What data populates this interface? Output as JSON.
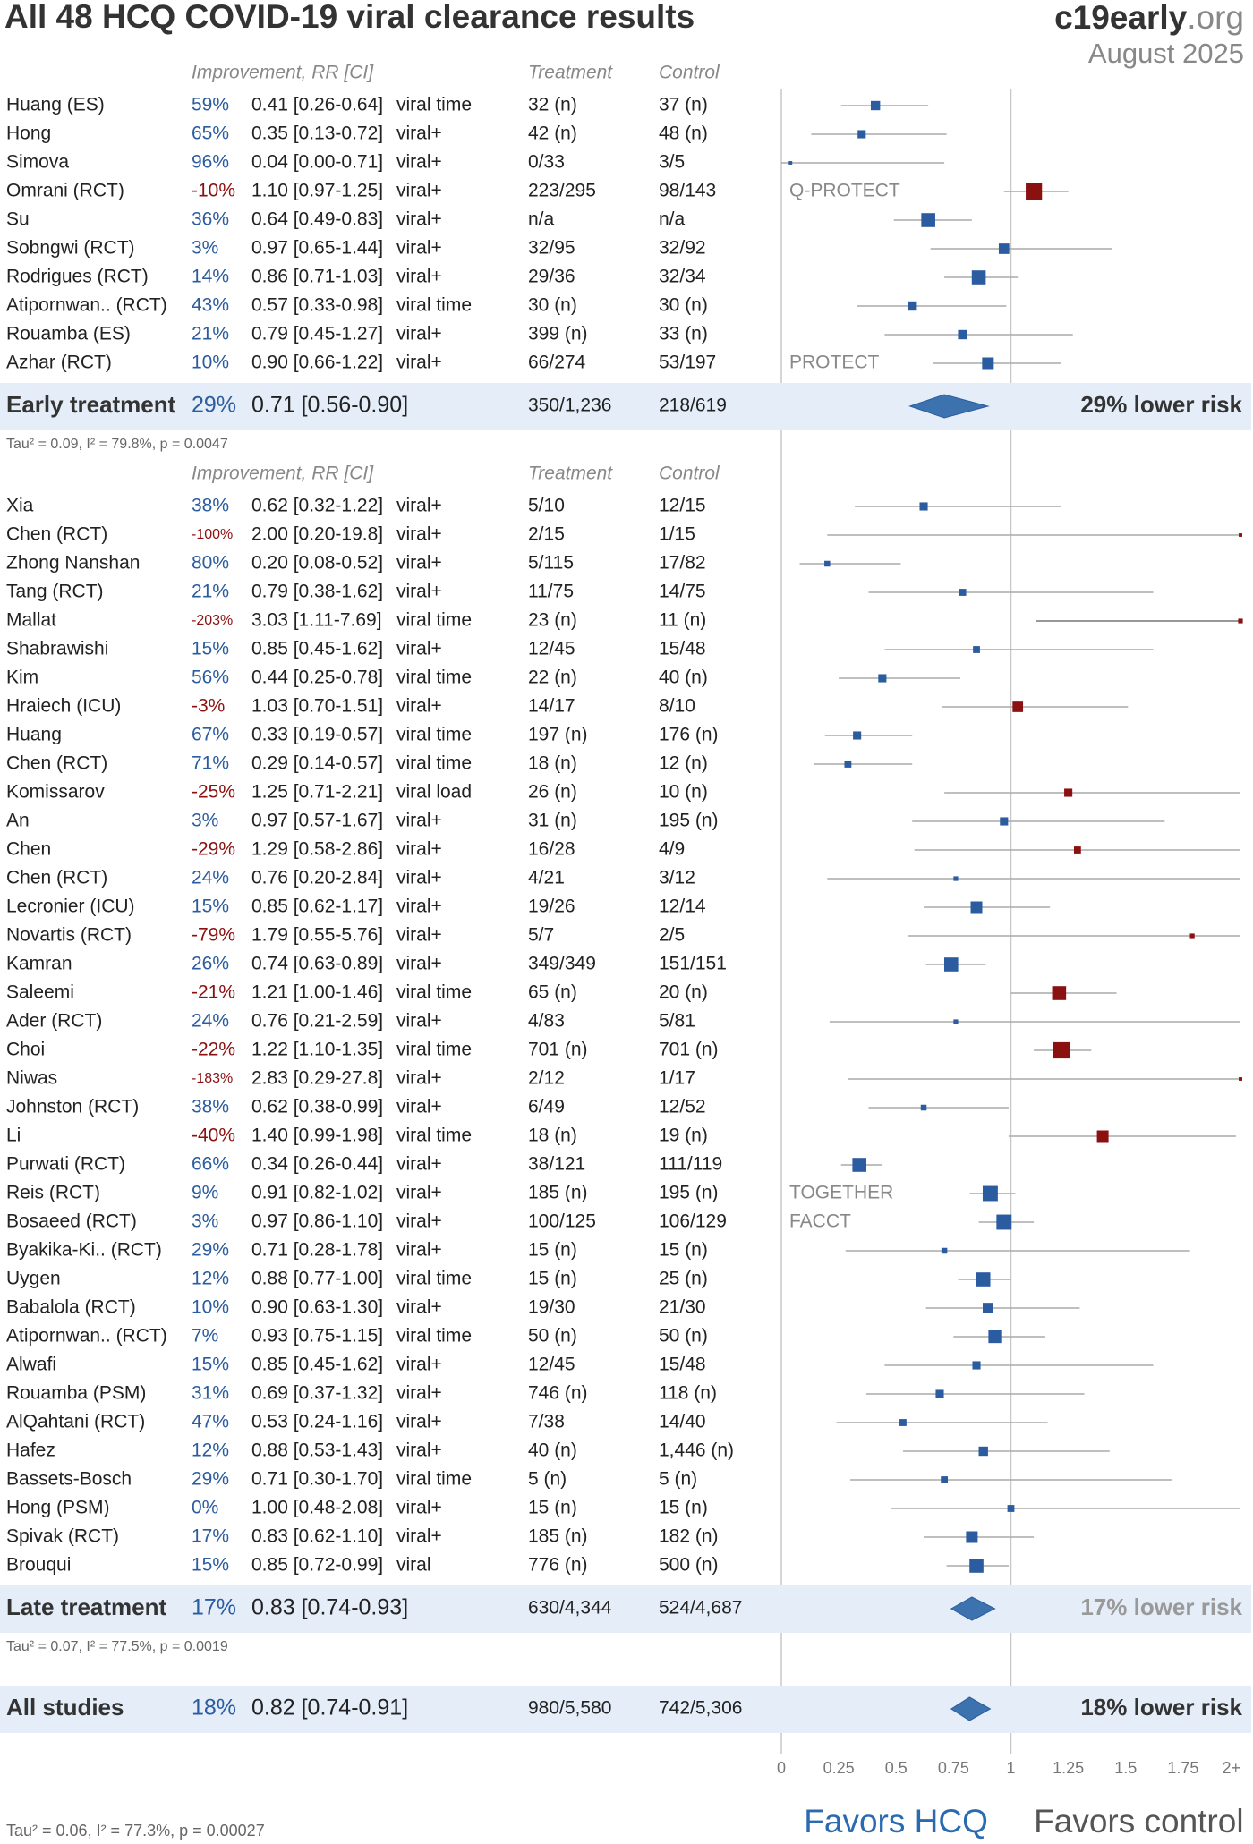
{
  "chart_data": {
    "type": "forest",
    "title": "All 48 HCQ COVID-19 viral clearance results",
    "brand": "c19early",
    "brand_suffix": ".org",
    "date": "August 2025",
    "headers": {
      "improvement": "Improvement, RR [CI]",
      "treatment": "Treatment",
      "control": "Control"
    },
    "xlim": [
      0,
      2
    ],
    "xticks": [
      0,
      0.25,
      0.5,
      0.75,
      1,
      1.25,
      1.5,
      1.75,
      {
        "value": 2,
        "label": "2+"
      }
    ],
    "colors": {
      "benefit": "#2a5c9f",
      "harm": "#8b1010",
      "band": "#e4edf8",
      "whisker": "#aaaaaa"
    },
    "groups": [
      {
        "studies": [
          {
            "name": "Huang (ES)",
            "improvement": "59%",
            "rr": 0.41,
            "ci": [
              0.26,
              0.64
            ],
            "rr_label": "0.41 [0.26-0.64]",
            "outcome": "viral time",
            "treatment": "32 (n)",
            "control": "37 (n)",
            "weight": 8
          },
          {
            "name": "Hong",
            "improvement": "65%",
            "rr": 0.35,
            "ci": [
              0.13,
              0.72
            ],
            "rr_label": "0.35 [0.13-0.72]",
            "outcome": "viral+",
            "treatment": "42 (n)",
            "control": "48 (n)",
            "weight": 7
          },
          {
            "name": "Simova",
            "improvement": "96%",
            "rr": 0.04,
            "ci": [
              0.0,
              0.71
            ],
            "rr_label": "0.04 [0.00-0.71]",
            "outcome": "viral+",
            "treatment": "0/33",
            "control": "3/5",
            "weight": 3
          },
          {
            "name": "Omrani (RCT)",
            "improvement": "-10%",
            "rr": 1.1,
            "ci": [
              0.97,
              1.25
            ],
            "rr_label": "1.10 [0.97-1.25]",
            "outcome": "viral+",
            "treatment": "223/295",
            "control": "98/143",
            "weight": 14,
            "note": "Q-PROTECT"
          },
          {
            "name": "Su",
            "improvement": "36%",
            "rr": 0.64,
            "ci": [
              0.49,
              0.83
            ],
            "rr_label": "0.64 [0.49-0.83]",
            "outcome": "viral+",
            "treatment": "n/a",
            "control": "n/a",
            "weight": 12
          },
          {
            "name": "Sobngwi (RCT)",
            "improvement": "3%",
            "rr": 0.97,
            "ci": [
              0.65,
              1.44
            ],
            "rr_label": "0.97 [0.65-1.44]",
            "outcome": "viral+",
            "treatment": "32/95",
            "control": "32/92",
            "weight": 9
          },
          {
            "name": "Rodrigues (RCT)",
            "improvement": "14%",
            "rr": 0.86,
            "ci": [
              0.71,
              1.03
            ],
            "rr_label": "0.86 [0.71-1.03]",
            "outcome": "viral+",
            "treatment": "29/36",
            "control": "32/34",
            "weight": 12
          },
          {
            "name": "Atipornwan.. (RCT)",
            "improvement": "43%",
            "rr": 0.57,
            "ci": [
              0.33,
              0.98
            ],
            "rr_label": "0.57 [0.33-0.98]",
            "outcome": "viral time",
            "treatment": "30 (n)",
            "control": "30 (n)",
            "weight": 8
          },
          {
            "name": "Rouamba (ES)",
            "improvement": "21%",
            "rr": 0.79,
            "ci": [
              0.45,
              1.27
            ],
            "rr_label": "0.79 [0.45-1.27]",
            "outcome": "viral+",
            "treatment": "399 (n)",
            "control": "33 (n)",
            "weight": 8
          },
          {
            "name": "Azhar (RCT)",
            "improvement": "10%",
            "rr": 0.9,
            "ci": [
              0.66,
              1.22
            ],
            "rr_label": "0.90 [0.66-1.22]",
            "outcome": "viral+",
            "treatment": "66/274",
            "control": "53/197",
            "weight": 10,
            "note": "PROTECT"
          }
        ],
        "summary": {
          "label": "Early treatment",
          "improvement": "29%",
          "rr": 0.71,
          "ci": [
            0.56,
            0.9
          ],
          "rr_label": "0.71 [0.56-0.90]",
          "treatment": "350/1,236",
          "control": "218/619",
          "risk_label": "29% lower risk",
          "stats": "Tau² = 0.09, I² = 79.8%, p = 0.0047"
        }
      },
      {
        "studies": [
          {
            "name": "Xia",
            "improvement": "38%",
            "rr": 0.62,
            "ci": [
              0.32,
              1.22
            ],
            "rr_label": "0.62 [0.32-1.22]",
            "outcome": "viral+",
            "treatment": "5/10",
            "control": "12/15",
            "weight": 7
          },
          {
            "name": "Chen (RCT)",
            "improvement": "-100%",
            "rr": 2.0,
            "ci": [
              0.2,
              19.8
            ],
            "rr_label": "2.00 [0.20-19.8]",
            "outcome": "viral+",
            "treatment": "2/15",
            "control": "1/15",
            "weight": 3
          },
          {
            "name": "Zhong Nanshan",
            "improvement": "80%",
            "rr": 0.2,
            "ci": [
              0.08,
              0.52
            ],
            "rr_label": "0.20 [0.08-0.52]",
            "outcome": "viral+",
            "treatment": "5/115",
            "control": "17/82",
            "weight": 5
          },
          {
            "name": "Tang (RCT)",
            "improvement": "21%",
            "rr": 0.79,
            "ci": [
              0.38,
              1.62
            ],
            "rr_label": "0.79 [0.38-1.62]",
            "outcome": "viral+",
            "treatment": "11/75",
            "control": "14/75",
            "weight": 6
          },
          {
            "name": "Mallat",
            "improvement": "-203%",
            "rr": 3.03,
            "ci": [
              1.11,
              7.69
            ],
            "rr_label": "3.03 [1.11-7.69]",
            "outcome": "viral time",
            "treatment": "23 (n)",
            "control": "11 (n)",
            "weight": 4
          },
          {
            "name": "Shabrawishi",
            "improvement": "15%",
            "rr": 0.85,
            "ci": [
              0.45,
              1.62
            ],
            "rr_label": "0.85 [0.45-1.62]",
            "outcome": "viral+",
            "treatment": "12/45",
            "control": "15/48",
            "weight": 6
          },
          {
            "name": "Kim",
            "improvement": "56%",
            "rr": 0.44,
            "ci": [
              0.25,
              0.78
            ],
            "rr_label": "0.44 [0.25-0.78]",
            "outcome": "viral time",
            "treatment": "22 (n)",
            "control": "40 (n)",
            "weight": 7
          },
          {
            "name": "Hraiech (ICU)",
            "improvement": "-3%",
            "rr": 1.03,
            "ci": [
              0.7,
              1.51
            ],
            "rr_label": "1.03 [0.70-1.51]",
            "outcome": "viral+",
            "treatment": "14/17",
            "control": "8/10",
            "weight": 9
          },
          {
            "name": "Huang",
            "improvement": "67%",
            "rr": 0.33,
            "ci": [
              0.19,
              0.57
            ],
            "rr_label": "0.33 [0.19-0.57]",
            "outcome": "viral time",
            "treatment": "197 (n)",
            "control": "176 (n)",
            "weight": 7
          },
          {
            "name": "Chen (RCT)",
            "improvement": "71%",
            "rr": 0.29,
            "ci": [
              0.14,
              0.57
            ],
            "rr_label": "0.29 [0.14-0.57]",
            "outcome": "viral time",
            "treatment": "18 (n)",
            "control": "12 (n)",
            "weight": 6
          },
          {
            "name": "Komissarov",
            "improvement": "-25%",
            "rr": 1.25,
            "ci": [
              0.71,
              2.21
            ],
            "rr_label": "1.25 [0.71-2.21]",
            "outcome": "viral load",
            "treatment": "26 (n)",
            "control": "10 (n)",
            "weight": 7
          },
          {
            "name": "An",
            "improvement": "3%",
            "rr": 0.97,
            "ci": [
              0.57,
              1.67
            ],
            "rr_label": "0.97 [0.57-1.67]",
            "outcome": "viral+",
            "treatment": "31 (n)",
            "control": "195 (n)",
            "weight": 7
          },
          {
            "name": "Chen",
            "improvement": "-29%",
            "rr": 1.29,
            "ci": [
              0.58,
              2.86
            ],
            "rr_label": "1.29 [0.58-2.86]",
            "outcome": "viral+",
            "treatment": "16/28",
            "control": "4/9",
            "weight": 6
          },
          {
            "name": "Chen (RCT)",
            "improvement": "24%",
            "rr": 0.76,
            "ci": [
              0.2,
              2.84
            ],
            "rr_label": "0.76 [0.20-2.84]",
            "outcome": "viral+",
            "treatment": "4/21",
            "control": "3/12",
            "weight": 4
          },
          {
            "name": "Lecronier (ICU)",
            "improvement": "15%",
            "rr": 0.85,
            "ci": [
              0.62,
              1.17
            ],
            "rr_label": "0.85 [0.62-1.17]",
            "outcome": "viral+",
            "treatment": "19/26",
            "control": "12/14",
            "weight": 10
          },
          {
            "name": "Novartis (RCT)",
            "improvement": "-79%",
            "rr": 1.79,
            "ci": [
              0.55,
              5.76
            ],
            "rr_label": "1.79 [0.55-5.76]",
            "outcome": "viral+",
            "treatment": "5/7",
            "control": "2/5",
            "weight": 4
          },
          {
            "name": "Kamran",
            "improvement": "26%",
            "rr": 0.74,
            "ci": [
              0.63,
              0.89
            ],
            "rr_label": "0.74 [0.63-0.89]",
            "outcome": "viral+",
            "treatment": "349/349",
            "control": "151/151",
            "weight": 12
          },
          {
            "name": "Saleemi",
            "improvement": "-21%",
            "rr": 1.21,
            "ci": [
              1.0,
              1.46
            ],
            "rr_label": "1.21 [1.00-1.46]",
            "outcome": "viral time",
            "treatment": "65 (n)",
            "control": "20 (n)",
            "weight": 12
          },
          {
            "name": "Ader (RCT)",
            "improvement": "24%",
            "rr": 0.76,
            "ci": [
              0.21,
              2.59
            ],
            "rr_label": "0.76 [0.21-2.59]",
            "outcome": "viral+",
            "treatment": "4/83",
            "control": "5/81",
            "weight": 4
          },
          {
            "name": "Choi",
            "improvement": "-22%",
            "rr": 1.22,
            "ci": [
              1.1,
              1.35
            ],
            "rr_label": "1.22 [1.10-1.35]",
            "outcome": "viral time",
            "treatment": "701 (n)",
            "control": "701 (n)",
            "weight": 14
          },
          {
            "name": "Niwas",
            "improvement": "-183%",
            "rr": 2.83,
            "ci": [
              0.29,
              27.8
            ],
            "rr_label": "2.83 [0.29-27.8]",
            "outcome": "viral+",
            "treatment": "2/12",
            "control": "1/17",
            "weight": 3
          },
          {
            "name": "Johnston (RCT)",
            "improvement": "38%",
            "rr": 0.62,
            "ci": [
              0.38,
              0.99
            ],
            "rr_label": "0.62 [0.38-0.99]",
            "outcome": "viral+",
            "treatment": "6/49",
            "control": "12/52",
            "weight": 5
          },
          {
            "name": "Li",
            "improvement": "-40%",
            "rr": 1.4,
            "ci": [
              0.99,
              1.98
            ],
            "rr_label": "1.40 [0.99-1.98]",
            "outcome": "viral time",
            "treatment": "18 (n)",
            "control": "19 (n)",
            "weight": 10
          },
          {
            "name": "Purwati (RCT)",
            "improvement": "66%",
            "rr": 0.34,
            "ci": [
              0.26,
              0.44
            ],
            "rr_label": "0.34 [0.26-0.44]",
            "outcome": "viral+",
            "treatment": "38/121",
            "control": "111/119",
            "weight": 12
          },
          {
            "name": "Reis (RCT)",
            "improvement": "9%",
            "rr": 0.91,
            "ci": [
              0.82,
              1.02
            ],
            "rr_label": "0.91 [0.82-1.02]",
            "outcome": "viral+",
            "treatment": "185 (n)",
            "control": "195 (n)",
            "weight": 13,
            "note": "TOGETHER"
          },
          {
            "name": "Bosaeed (RCT)",
            "improvement": "3%",
            "rr": 0.97,
            "ci": [
              0.86,
              1.1
            ],
            "rr_label": "0.97 [0.86-1.10]",
            "outcome": "viral+",
            "treatment": "100/125",
            "control": "106/129",
            "weight": 13,
            "note": "FACCT"
          },
          {
            "name": "Byakika-Ki.. (RCT)",
            "improvement": "29%",
            "rr": 0.71,
            "ci": [
              0.28,
              1.78
            ],
            "rr_label": "0.71 [0.28-1.78]",
            "outcome": "viral+",
            "treatment": "15 (n)",
            "control": "15 (n)",
            "weight": 5
          },
          {
            "name": "Uygen",
            "improvement": "12%",
            "rr": 0.88,
            "ci": [
              0.77,
              1.0
            ],
            "rr_label": "0.88 [0.77-1.00]",
            "outcome": "viral time",
            "treatment": "15 (n)",
            "control": "25 (n)",
            "weight": 12
          },
          {
            "name": "Babalola (RCT)",
            "improvement": "10%",
            "rr": 0.9,
            "ci": [
              0.63,
              1.3
            ],
            "rr_label": "0.90 [0.63-1.30]",
            "outcome": "viral+",
            "treatment": "19/30",
            "control": "21/30",
            "weight": 9
          },
          {
            "name": "Atipornwan.. (RCT)",
            "improvement": "7%",
            "rr": 0.93,
            "ci": [
              0.75,
              1.15
            ],
            "rr_label": "0.93 [0.75-1.15]",
            "outcome": "viral time",
            "treatment": "50 (n)",
            "control": "50 (n)",
            "weight": 11
          },
          {
            "name": "Alwafi",
            "improvement": "15%",
            "rr": 0.85,
            "ci": [
              0.45,
              1.62
            ],
            "rr_label": "0.85 [0.45-1.62]",
            "outcome": "viral+",
            "treatment": "12/45",
            "control": "15/48",
            "weight": 7
          },
          {
            "name": "Rouamba (PSM)",
            "improvement": "31%",
            "rr": 0.69,
            "ci": [
              0.37,
              1.32
            ],
            "rr_label": "0.69 [0.37-1.32]",
            "outcome": "viral+",
            "treatment": "746 (n)",
            "control": "118 (n)",
            "weight": 7
          },
          {
            "name": "AlQahtani (RCT)",
            "improvement": "47%",
            "rr": 0.53,
            "ci": [
              0.24,
              1.16
            ],
            "rr_label": "0.53 [0.24-1.16]",
            "outcome": "viral+",
            "treatment": "7/38",
            "control": "14/40",
            "weight": 6
          },
          {
            "name": "Hafez",
            "improvement": "12%",
            "rr": 0.88,
            "ci": [
              0.53,
              1.43
            ],
            "rr_label": "0.88 [0.53-1.43]",
            "outcome": "viral+",
            "treatment": "40 (n)",
            "control": "1,446 (n)",
            "weight": 8
          },
          {
            "name": "Bassets-Bosch",
            "improvement": "29%",
            "rr": 0.71,
            "ci": [
              0.3,
              1.7
            ],
            "rr_label": "0.71 [0.30-1.70]",
            "outcome": "viral time",
            "treatment": "5 (n)",
            "control": "5 (n)",
            "weight": 6
          },
          {
            "name": "Hong (PSM)",
            "improvement": "0%",
            "rr": 1.0,
            "ci": [
              0.48,
              2.08
            ],
            "rr_label": "1.00 [0.48-2.08]",
            "outcome": "viral+",
            "treatment": "15 (n)",
            "control": "15 (n)",
            "weight": 6
          },
          {
            "name": "Spivak (RCT)",
            "improvement": "17%",
            "rr": 0.83,
            "ci": [
              0.62,
              1.1
            ],
            "rr_label": "0.83 [0.62-1.10]",
            "outcome": "viral+",
            "treatment": "185 (n)",
            "control": "182 (n)",
            "weight": 10
          },
          {
            "name": "Brouqui",
            "improvement": "15%",
            "rr": 0.85,
            "ci": [
              0.72,
              0.99
            ],
            "rr_label": "0.85 [0.72-0.99]",
            "outcome": "viral",
            "treatment": "776 (n)",
            "control": "500 (n)",
            "weight": 12
          }
        ],
        "summary": {
          "label": "Late treatment",
          "improvement": "17%",
          "rr": 0.83,
          "ci": [
            0.74,
            0.93
          ],
          "rr_label": "0.83 [0.74-0.93]",
          "treatment": "630/4,344",
          "control": "524/4,687",
          "risk_label": "17% lower risk",
          "stats": "Tau² = 0.07, I² = 77.5%, p = 0.0019"
        }
      }
    ],
    "overall": {
      "label": "All studies",
      "improvement": "18%",
      "rr": 0.82,
      "ci": [
        0.74,
        0.91
      ],
      "rr_label": "0.82 [0.74-0.91]",
      "treatment": "980/5,580",
      "control": "742/5,306",
      "risk_label": "18% lower risk",
      "stats": "Tau² = 0.06, I² = 77.3%, p = 0.00027"
    },
    "favors": [
      "Favors HCQ",
      "Favors control"
    ]
  }
}
